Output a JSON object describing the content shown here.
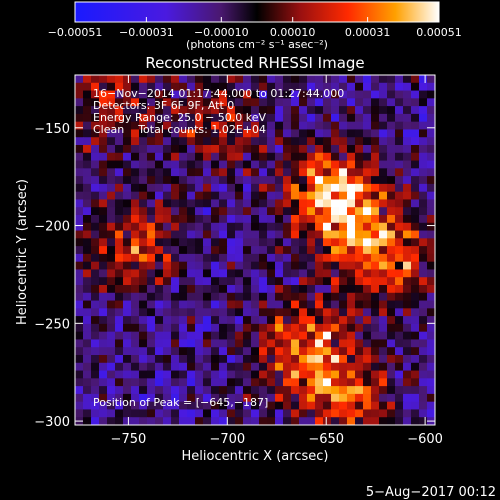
{
  "chart_data": {
    "type": "heatmap",
    "title": "Reconstructed RHESSI Image",
    "xlabel": "Heliocentric X (arcsec)",
    "ylabel": "Heliocentric Y (arcsec)",
    "xlim": [
      -777,
      -595
    ],
    "ylim": [
      -302,
      -123
    ],
    "x_ticks": [
      -750,
      -700,
      -650,
      -600
    ],
    "y_ticks": [
      -150,
      -200,
      -250,
      -300
    ],
    "x_tick_labels": [
      "−750",
      "−700",
      "−650",
      "−600"
    ],
    "y_tick_labels": [
      "−150",
      "−200",
      "−250",
      "−300"
    ],
    "colorbar": {
      "range": [
        -0.00051,
        0.00051
      ],
      "tick_values": [
        -0.00051,
        -0.00031,
        -0.0001,
        0.0001,
        0.00031,
        0.00051
      ],
      "tick_labels": [
        "−0.00051",
        "−0.00031",
        "−0.00010",
        "0.00010",
        "0.00031",
        "0.00051"
      ],
      "units": "(photons cm⁻² s⁻¹ asec⁻²)"
    },
    "annotations": [
      "16−Nov−2014 01:17:44.000 to 01:27:44.000",
      "Detectors: 3F 6F 9F, Att 0",
      "Energy Range: 25.0 − 50.0 keV",
      "Clean    Total counts: 1.02E+04"
    ],
    "peak_label": "Position of Peak = [−645,−187]",
    "peak": [
      -645,
      -187
    ],
    "footer_date": "5−Aug−2017 00:12",
    "hot_regions": [
      {
        "x": -645,
        "y": -187,
        "strength": 1.0
      },
      {
        "x": -620,
        "y": -215,
        "strength": 0.7
      },
      {
        "x": -660,
        "y": -262,
        "strength": 0.75
      },
      {
        "x": -745,
        "y": -212,
        "strength": 0.55
      },
      {
        "x": -760,
        "y": -140,
        "strength": 0.45
      },
      {
        "x": -705,
        "y": -150,
        "strength": 0.4
      },
      {
        "x": -640,
        "y": -290,
        "strength": 0.55
      }
    ]
  }
}
